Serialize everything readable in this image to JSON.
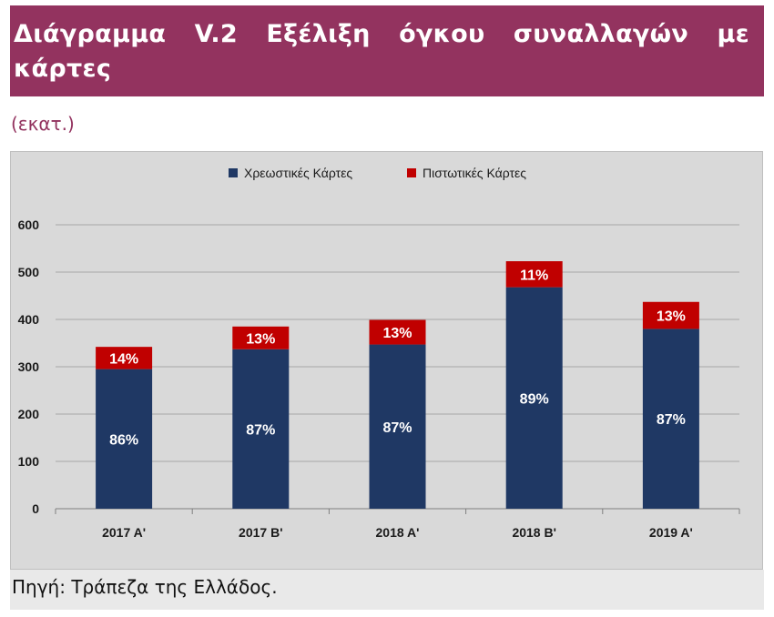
{
  "title": "Διάγραμμα V.2 Εξέλιξη όγκου συναλλαγών με κάρτες",
  "unit": "(εκατ.)",
  "source": "Πηγή: Τράπεζα της Ελλάδος.",
  "colors": {
    "title_background": "#93335f",
    "debit": "#1f3864",
    "credit": "#c00000",
    "plot_background": "#d9d9d9"
  },
  "chart_data": {
    "type": "bar",
    "stacked": true,
    "categories": [
      "2017 A'",
      "2017 B'",
      "2018 A'",
      "2018 B'",
      "2019 A'"
    ],
    "series": [
      {
        "name": "Χρεωστικές Κάρτες",
        "color": "#1f3864",
        "values": [
          295,
          337,
          347,
          468,
          380
        ],
        "labels": [
          "86%",
          "87%",
          "87%",
          "89%",
          "87%"
        ]
      },
      {
        "name": "Πιστωτικές Κάρτες",
        "color": "#c00000",
        "values": [
          47,
          48,
          52,
          55,
          57
        ],
        "labels": [
          "14%",
          "13%",
          "13%",
          "11%",
          "13%"
        ]
      }
    ],
    "ylim": [
      0,
      600
    ],
    "yticks": [
      "0",
      "100",
      "200",
      "300",
      "400",
      "500",
      "600"
    ],
    "grid": true,
    "legend": "top-center"
  }
}
